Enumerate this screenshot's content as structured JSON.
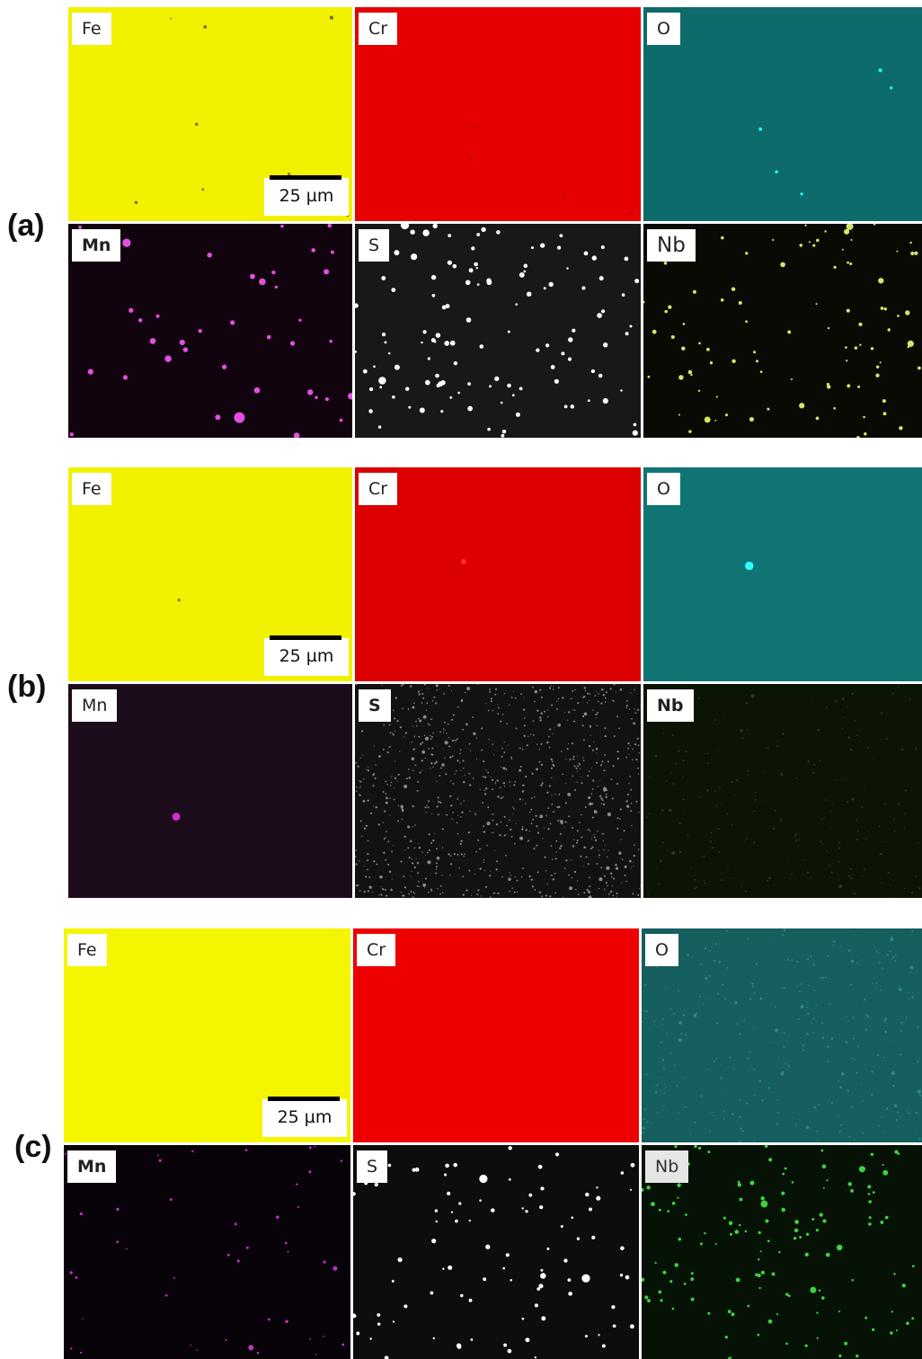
{
  "groups": [
    {
      "label": "(a)",
      "scale_bar": "25 µm",
      "tiles": [
        {
          "element": "Fe",
          "bg": "#f2f200",
          "dot": "#707040",
          "count": 8,
          "size": 1.5,
          "bold": false,
          "grey": false,
          "big": false
        },
        {
          "element": "Cr",
          "bg": "#e60000",
          "dot": "#b00000",
          "count": 4,
          "size": 1.5,
          "bold": false,
          "grey": false,
          "big": false
        },
        {
          "element": "O",
          "bg": "#0e6b6b",
          "dot": "#22f0f0",
          "count": 5,
          "size": 2,
          "bold": false,
          "grey": false,
          "big": false
        },
        {
          "element": "Mn",
          "bg": "#12040f",
          "dot": "#e050e0",
          "count": 38,
          "size": 2.5,
          "bold": true,
          "grey": false,
          "big": false
        },
        {
          "element": "S",
          "bg": "#181818",
          "dot": "#ffffff",
          "count": 120,
          "size": 2,
          "bold": false,
          "grey": false,
          "big": false
        },
        {
          "element": "Nb",
          "bg": "#080a03",
          "dot": "#cfe86a",
          "count": 95,
          "size": 1.5,
          "bold": false,
          "grey": false,
          "big": true
        }
      ]
    },
    {
      "label": "(b)",
      "scale_bar": "25 µm",
      "tiles": [
        {
          "element": "Fe",
          "bg": "#f2f200",
          "dot": "#707040",
          "count": 1,
          "size": 2.5,
          "bold": false,
          "grey": false,
          "big": false
        },
        {
          "element": "Cr",
          "bg": "#dc0000",
          "dot": "#ff3030",
          "count": 1,
          "size": 2,
          "bold": false,
          "grey": false,
          "big": false
        },
        {
          "element": "O",
          "bg": "#107474",
          "dot": "#30ffff",
          "count": 1,
          "size": 3.5,
          "bold": false,
          "grey": false,
          "big": false
        },
        {
          "element": "Mn",
          "bg": "#1c0c1c",
          "dot": "#d030d0",
          "count": 1,
          "size": 3.5,
          "bold": false,
          "grey": false,
          "big": false
        },
        {
          "element": "S",
          "bg": "#121212",
          "dot": "#8a8a8a",
          "count": 900,
          "size": 0.8,
          "bold": true,
          "grey": false,
          "big": false
        },
        {
          "element": "Nb",
          "bg": "#0c1406",
          "dot": "#24401a",
          "count": 200,
          "size": 0.8,
          "bold": true,
          "grey": false,
          "big": false
        }
      ]
    },
    {
      "label": "(c)",
      "scale_bar": "25 µm",
      "tiles": [
        {
          "element": "Fe",
          "bg": "#f5f500",
          "dot": "#e0e000",
          "count": 0,
          "size": 1,
          "bold": false,
          "grey": false,
          "big": false
        },
        {
          "element": "Cr",
          "bg": "#ee0000",
          "dot": "#d00000",
          "count": 0,
          "size": 1,
          "bold": false,
          "grey": false,
          "big": false
        },
        {
          "element": "O",
          "bg": "#155f5f",
          "dot": "#2a8a8a",
          "count": 300,
          "size": 0.8,
          "bold": false,
          "grey": false,
          "big": false
        },
        {
          "element": "Mn",
          "bg": "#080308",
          "dot": "#c030c0",
          "count": 45,
          "size": 1.2,
          "bold": true,
          "grey": false,
          "big": false
        },
        {
          "element": "S",
          "bg": "#0d0d0d",
          "dot": "#ffffff",
          "count": 90,
          "size": 1.8,
          "bold": false,
          "grey": false,
          "big": false
        },
        {
          "element": "Nb",
          "bg": "#061206",
          "dot": "#40d040",
          "count": 130,
          "size": 1.6,
          "bold": false,
          "grey": true,
          "big": false
        }
      ]
    }
  ]
}
